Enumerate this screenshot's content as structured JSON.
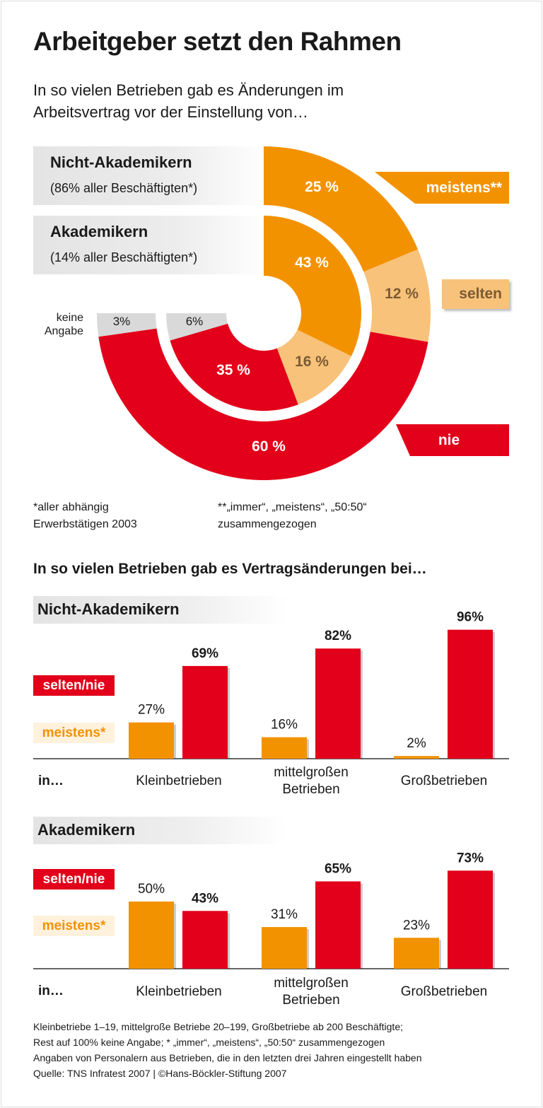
{
  "title": "Arbeitgeber setzt den Rahmen",
  "subtitle_lines": [
    "In so vielen Betrieben gab es Änderungen im",
    "Arbeitsvertrag vor der Einstellung von…"
  ],
  "colors": {
    "meistens": "#f39200",
    "selten": "#f8c27a",
    "nie": "#e2001a",
    "keine_angabe": "#d9d9d9",
    "selten_text": "#7b5b33"
  },
  "donut": {
    "groups": [
      {
        "title": "Nicht-Akademikern",
        "share": "(86% aller Beschäftigten*)"
      },
      {
        "title": "Akademikern",
        "share": "(14% aller Beschäftigten*)"
      }
    ],
    "legend": {
      "meistens": "meistens**",
      "selten": "selten",
      "nie": "nie",
      "keine_angabe": "keine Angabe"
    },
    "footnote_left": [
      "*aller abhängig",
      "Erwerbstätigen 2003"
    ],
    "footnote_right": [
      "**„immer“, „meistens“, „50:50“",
      "zusammengezogen"
    ]
  },
  "chart_data": [
    {
      "type": "pie",
      "ring": "outer",
      "group": "Nicht-Akademikern",
      "categories": [
        "meistens**",
        "selten",
        "nie",
        "keine Angabe"
      ],
      "values": [
        25,
        12,
        60,
        3
      ],
      "labels": [
        "25 %",
        "12 %",
        "60 %",
        "3%"
      ]
    },
    {
      "type": "pie",
      "ring": "inner",
      "group": "Akademikern",
      "categories": [
        "meistens**",
        "selten",
        "nie",
        "keine Angabe"
      ],
      "values": [
        43,
        16,
        35,
        6
      ],
      "labels": [
        "43 %",
        "16 %",
        "35 %",
        "6%"
      ]
    },
    {
      "type": "bar",
      "title": "Nicht-Akademikern",
      "categories": [
        "Kleinbetrieben",
        "mittelgroßen\nBetrieben",
        "Großbetrieben"
      ],
      "series": [
        {
          "name": "meistens*",
          "values": [
            27,
            16,
            2
          ],
          "labels": [
            "27%",
            "16%",
            "2%"
          ]
        },
        {
          "name": "selten/nie",
          "values": [
            69,
            82,
            96
          ],
          "labels": [
            "69%",
            "82%",
            "96%"
          ]
        }
      ],
      "ylim": [
        0,
        100
      ]
    },
    {
      "type": "bar",
      "title": "Akademikern",
      "categories": [
        "Kleinbetrieben",
        "mittelgroßen\nBetrieben",
        "Großbetrieben"
      ],
      "series": [
        {
          "name": "meistens*",
          "values": [
            50,
            31,
            23
          ],
          "labels": [
            "50%",
            "31%",
            "23%"
          ]
        },
        {
          "name": "selten/nie",
          "values": [
            43,
            65,
            73
          ],
          "labels": [
            "43%",
            "65%",
            "73%"
          ]
        }
      ],
      "ylim": [
        0,
        100
      ]
    }
  ],
  "bars_heading": "In so vielen Betrieben gab es Vertragsänderungen bei…",
  "in_label": "in…",
  "footer": [
    "Kleinbetriebe 1–19, mittelgroße Betriebe 20–199, Großbetriebe ab 200 Beschäftigte;",
    "Rest auf 100% keine Angabe; * „immer“, „meistens“, „50:50“ zusammengezogen",
    "Angaben von Personalern aus Betrieben, die in den letzten drei Jahren eingestellt haben",
    "Quelle: TNS Infratest 2007 | ©Hans-Böckler-Stiftung 2007"
  ]
}
